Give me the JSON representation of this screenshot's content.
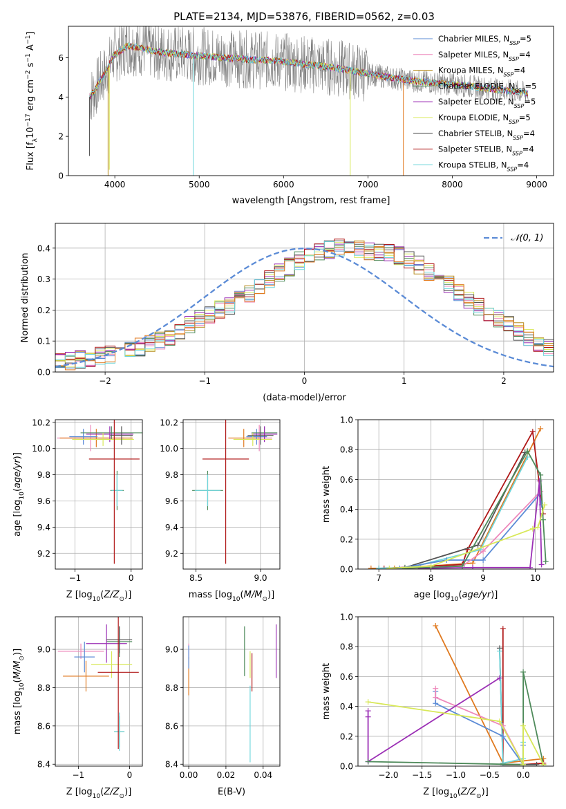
{
  "title": "PLATE=2134, MJD=53876, FIBERID=0562, z=0.03",
  "colors": {
    "Chabrier MILES": "#5b8bd6",
    "Salpeter MILES": "#ee88bb",
    "Kroupa MILES": "#b58a1a",
    "Chabrier ELODIE": "#4e8a5a",
    "Salpeter ELODIE": "#9b2fb5",
    "Kroupa ELODIE": "#d8e858",
    "Chabrier STELIB": "#555555",
    "Salpeter STELIB": "#b01818",
    "Kroupa STELIB": "#6fd6dc",
    "orange": "#e07a20",
    "normal": "#5b8bd6"
  },
  "chart_data": [
    {
      "type": "line",
      "id": "spectrum",
      "xlabel": "wavelength [Angstrom, rest frame]",
      "ylabel": "Flux [f_λ 10^-17 erg cm^-2 s^-1 A^-1]",
      "xlim": [
        3450,
        9200
      ],
      "ylim": [
        0,
        7.6
      ],
      "xticks": [
        4000,
        5000,
        6000,
        7000,
        8000,
        9000
      ],
      "yticks": [
        0,
        2,
        4,
        6
      ],
      "grid": false,
      "legend_position": "top-right",
      "data_range": [
        3700,
        8900
      ],
      "continuum_x": [
        3700,
        3760,
        3820,
        3900,
        3980,
        4050,
        4150,
        4300,
        4500,
        4700,
        5000,
        5300,
        5600,
        5900,
        6200,
        6500,
        6800,
        7100,
        7400,
        7700,
        8000,
        8300,
        8600,
        8900
      ],
      "continuum_y": [
        4.0,
        4.3,
        4.8,
        5.3,
        6.1,
        6.3,
        6.6,
        6.5,
        6.3,
        6.2,
        6.1,
        6.0,
        5.9,
        5.85,
        5.7,
        5.55,
        5.35,
        5.1,
        4.9,
        4.75,
        4.65,
        4.5,
        4.35,
        4.2
      ],
      "legend": [
        {
          "name": "Chabrier MILES, N",
          "sub": "SSP",
          "value": "=5",
          "color": "#5b8bd6"
        },
        {
          "name": "Salpeter MILES, N",
          "sub": "SSP",
          "value": "=4",
          "color": "#ee88bb"
        },
        {
          "name": "Kroupa MILES, N",
          "sub": "SSP",
          "value": "=4",
          "color": "#b58a1a"
        },
        {
          "name": "Chabrier ELODIE, N",
          "sub": "SSP",
          "value": "=5",
          "color": "#4e8a5a"
        },
        {
          "name": "Salpeter ELODIE, N",
          "sub": "SSP",
          "value": "=5",
          "color": "#9b2fb5"
        },
        {
          "name": "Kroupa ELODIE, N",
          "sub": "SSP",
          "value": "=5",
          "color": "#d8e858"
        },
        {
          "name": "Chabrier STELIB, N",
          "sub": "SSP",
          "value": "=4",
          "color": "#555555"
        },
        {
          "name": "Salpeter STELIB, N",
          "sub": "SSP",
          "value": "=4",
          "color": "#b01818"
        },
        {
          "name": "Kroupa STELIB, N",
          "sub": "SSP",
          "value": "=4",
          "color": "#6fd6dc"
        }
      ]
    },
    {
      "type": "line",
      "id": "residuals",
      "xlabel": "(data-model)/error",
      "ylabel": "Normed distribution",
      "xlim": [
        -2.5,
        2.5
      ],
      "ylim": [
        0,
        0.48
      ],
      "xticks": [
        -2,
        -1,
        0,
        1,
        2
      ],
      "yticks": [
        0.0,
        0.1,
        0.2,
        0.3,
        0.4
      ],
      "grid": true,
      "legend_position": "top-right",
      "legend_label": "𝒩(0, 1)",
      "bin_width": 0.1,
      "hist_base": [
        0.03,
        0.035,
        0.04,
        0.045,
        0.05,
        0.055,
        0.06,
        0.07,
        0.08,
        0.09,
        0.1,
        0.115,
        0.13,
        0.15,
        0.17,
        0.185,
        0.2,
        0.215,
        0.235,
        0.255,
        0.28,
        0.3,
        0.32,
        0.34,
        0.36,
        0.375,
        0.385,
        0.395,
        0.4,
        0.4,
        0.395,
        0.39,
        0.39,
        0.385,
        0.375,
        0.36,
        0.345,
        0.325,
        0.305,
        0.28,
        0.255,
        0.23,
        0.21,
        0.19,
        0.17,
        0.15,
        0.13,
        0.11,
        0.095,
        0.08
      ]
    },
    {
      "type": "scatter",
      "id": "age-vs-Z",
      "xlabel": "Z [log10(Z/Z_⊙)]",
      "ylabel": "age [log10(age/yr)]",
      "xlim": [
        -1.35,
        0.2
      ],
      "ylim": [
        9.08,
        10.22
      ],
      "xticks": [
        -1,
        0
      ],
      "yticks": [
        9.2,
        9.4,
        9.6,
        9.8,
        10.0,
        10.2
      ],
      "grid": true,
      "points": [
        {
          "x": -0.72,
          "y": 10.08,
          "xerr": 0.6,
          "yerr": 0.1,
          "color": "#ee88bb"
        },
        {
          "x": -0.62,
          "y": 10.08,
          "xerr": 0.65,
          "yerr": 0.07,
          "color": "#e07a20"
        },
        {
          "x": -0.85,
          "y": 10.09,
          "xerr": 0.25,
          "yerr": 0.06,
          "color": "#5b8bd6"
        },
        {
          "x": -0.35,
          "y": 10.12,
          "xerr": 0.55,
          "yerr": 0.05,
          "color": "#4e8a5a"
        },
        {
          "x": -0.38,
          "y": 10.11,
          "xerr": 0.42,
          "yerr": 0.06,
          "color": "#9b2fb5"
        },
        {
          "x": -0.5,
          "y": 10.07,
          "xerr": 0.55,
          "yerr": 0.05,
          "color": "#d8e858"
        },
        {
          "x": -0.17,
          "y": 10.1,
          "xerr": 0.2,
          "yerr": 0.07,
          "color": "#555555"
        },
        {
          "x": -0.25,
          "y": 9.68,
          "xerr": 0.12,
          "yerr": 0.15,
          "color": "#4e8a5a"
        },
        {
          "x": -0.25,
          "y": 9.68,
          "xerr": 0.1,
          "yerr": 0.12,
          "color": "#6fd6dc"
        },
        {
          "x": -0.3,
          "y": 9.92,
          "xerr": 0.45,
          "yerr": 0.8,
          "color": "#b01818"
        }
      ]
    },
    {
      "type": "scatter",
      "id": "age-vs-mass",
      "xlabel": "mass [log10(M/M_⊙)]",
      "ylabel": "",
      "xlim": [
        8.4,
        9.15
      ],
      "ylim": [
        9.08,
        10.22
      ],
      "xticks": [
        8.5,
        9.0
      ],
      "yticks": [
        9.2,
        9.4,
        9.6,
        9.8,
        10.0,
        10.2
      ],
      "grid": true,
      "points": [
        {
          "x": 8.99,
          "y": 10.08,
          "xerr": 0.1,
          "yerr": 0.1,
          "color": "#ee88bb"
        },
        {
          "x": 8.87,
          "y": 10.08,
          "xerr": 0.12,
          "yerr": 0.07,
          "color": "#e07a20"
        },
        {
          "x": 8.97,
          "y": 10.09,
          "xerr": 0.08,
          "yerr": 0.06,
          "color": "#5b8bd6"
        },
        {
          "x": 9.03,
          "y": 10.12,
          "xerr": 0.1,
          "yerr": 0.05,
          "color": "#4e8a5a"
        },
        {
          "x": 9.03,
          "y": 10.11,
          "xerr": 0.1,
          "yerr": 0.06,
          "color": "#9b2fb5"
        },
        {
          "x": 8.94,
          "y": 10.07,
          "xerr": 0.15,
          "yerr": 0.05,
          "color": "#d8e858"
        },
        {
          "x": 9.0,
          "y": 10.1,
          "xerr": 0.1,
          "yerr": 0.07,
          "color": "#555555"
        },
        {
          "x": 8.59,
          "y": 9.68,
          "xerr": 0.12,
          "yerr": 0.15,
          "color": "#4e8a5a"
        },
        {
          "x": 8.59,
          "y": 9.68,
          "xerr": 0.1,
          "yerr": 0.12,
          "color": "#6fd6dc"
        },
        {
          "x": 8.73,
          "y": 9.92,
          "xerr": 0.18,
          "yerr": 0.8,
          "color": "#b01818"
        }
      ]
    },
    {
      "type": "line",
      "id": "massweight-vs-age",
      "xlabel": "age [log10(age/yr)]",
      "ylabel": "mass weight",
      "xlim": [
        6.6,
        10.35
      ],
      "ylim": [
        0,
        1.0
      ],
      "xticks": [
        7,
        8,
        9,
        10
      ],
      "yticks": [
        0.0,
        0.2,
        0.4,
        0.6,
        0.8,
        1.0
      ],
      "grid": true,
      "series": [
        {
          "color": "#e07a20",
          "x": [
            6.85,
            7.3,
            8.8,
            10.1
          ],
          "y": [
            0.005,
            0.005,
            0.04,
            0.94
          ]
        },
        {
          "color": "#b01818",
          "x": [
            7.1,
            8.6,
            8.7,
            9.95,
            10.15
          ],
          "y": [
            0.005,
            0.03,
            0.13,
            0.92,
            0.37
          ]
        },
        {
          "color": "#555555",
          "x": [
            7.0,
            7.5,
            8.9,
            9.8
          ],
          "y": [
            0.005,
            0.01,
            0.16,
            0.78
          ]
        },
        {
          "color": "#6fd6dc",
          "x": [
            7.0,
            7.6,
            8.95,
            9.85
          ],
          "y": [
            0.005,
            0.01,
            0.13,
            0.75
          ]
        },
        {
          "color": "#5b8bd6",
          "x": [
            7.4,
            8.3,
            9.0,
            10.08,
            10.12
          ],
          "y": [
            0.005,
            0.06,
            0.06,
            0.5,
            0.43
          ]
        },
        {
          "color": "#ee88bb",
          "x": [
            7.6,
            8.6,
            9.0,
            10.1
          ],
          "y": [
            0.005,
            0.02,
            0.12,
            0.52
          ]
        },
        {
          "color": "#9b2fb5",
          "x": [
            7.8,
            8.8,
            9.9,
            10.08,
            10.12
          ],
          "y": [
            0.005,
            0.01,
            0.01,
            0.59,
            0.03
          ]
        },
        {
          "color": "#4e8a5a",
          "x": [
            7.5,
            8.6,
            9.85,
            10.1,
            10.15,
            10.2
          ],
          "y": [
            0.005,
            0.02,
            0.79,
            0.63,
            0.33,
            0.05
          ]
        },
        {
          "color": "#d8e858",
          "x": [
            7.2,
            8.0,
            9.95,
            10.05,
            10.18
          ],
          "y": [
            0.005,
            0.02,
            0.27,
            0.28,
            0.43
          ]
        }
      ]
    },
    {
      "type": "scatter",
      "id": "mass-vs-Z",
      "xlabel": "Z [log10(Z/Z_⊙)]",
      "ylabel": "mass [log10(M/M_⊙)]",
      "xlim": [
        -1.45,
        0.25
      ],
      "ylim": [
        8.39,
        9.17
      ],
      "xticks": [
        -1,
        0
      ],
      "yticks": [
        8.4,
        8.6,
        8.8,
        9.0
      ],
      "grid": true,
      "points": [
        {
          "x": -0.95,
          "y": 8.99,
          "xerr": 0.45,
          "yerr": 0.04,
          "color": "#ee88bb"
        },
        {
          "x": -0.85,
          "y": 8.86,
          "xerr": 0.45,
          "yerr": 0.08,
          "color": "#e07a20"
        },
        {
          "x": -0.88,
          "y": 8.96,
          "xerr": 0.2,
          "yerr": 0.08,
          "color": "#5b8bd6"
        },
        {
          "x": -0.2,
          "y": 9.04,
          "xerr": 0.25,
          "yerr": 0.08,
          "color": "#4e8a5a"
        },
        {
          "x": -0.45,
          "y": 9.03,
          "xerr": 0.4,
          "yerr": 0.1,
          "color": "#9b2fb5"
        },
        {
          "x": -0.35,
          "y": 8.92,
          "xerr": 0.4,
          "yerr": 0.07,
          "color": "#d8e858"
        },
        {
          "x": -0.2,
          "y": 9.05,
          "xerr": 0.25,
          "yerr": 0.07,
          "color": "#555555"
        },
        {
          "x": -0.2,
          "y": 8.57,
          "xerr": 0.1,
          "yerr": 0.08,
          "color": "#4e8a5a"
        },
        {
          "x": -0.2,
          "y": 8.57,
          "xerr": 0.1,
          "yerr": 0.1,
          "color": "#6fd6dc"
        },
        {
          "x": -0.22,
          "y": 8.88,
          "xerr": 0.4,
          "yerr": 0.4,
          "color": "#b01818"
        }
      ]
    },
    {
      "type": "scatter",
      "id": "mass-vs-EBV",
      "xlabel": "E(B-V)",
      "ylabel": "",
      "xlim": [
        -0.003,
        0.049
      ],
      "ylim": [
        8.39,
        9.17
      ],
      "xticks": [
        0.0,
        0.02,
        0.04
      ],
      "yticks": [
        8.4,
        8.6,
        8.8,
        9.0
      ],
      "grid": true,
      "points": [
        {
          "x": 0.0,
          "y": 8.99,
          "xerr": 0,
          "yerr": 0.04,
          "color": "#ee88bb"
        },
        {
          "x": 0.0,
          "y": 8.86,
          "xerr": 0,
          "yerr": 0.1,
          "color": "#e07a20"
        },
        {
          "x": 0.0,
          "y": 8.96,
          "xerr": 0,
          "yerr": 0.06,
          "color": "#5b8bd6"
        },
        {
          "x": 0.03,
          "y": 8.99,
          "xerr": 0,
          "yerr": 0.13,
          "color": "#4e8a5a"
        },
        {
          "x": 0.047,
          "y": 8.99,
          "xerr": 0,
          "yerr": 0.14,
          "color": "#9b2fb5"
        },
        {
          "x": 0.033,
          "y": 8.92,
          "xerr": 0,
          "yerr": 0.07,
          "color": "#d8e858"
        },
        {
          "x": 0.033,
          "y": 8.61,
          "xerr": 0,
          "yerr": 0.2,
          "color": "#6fd6dc"
        },
        {
          "x": 0.034,
          "y": 8.88,
          "xerr": 0,
          "yerr": 0.1,
          "color": "#b01818"
        }
      ]
    },
    {
      "type": "line",
      "id": "massweight-vs-Z",
      "xlabel": "Z [log10(Z/Z_⊙)]",
      "ylabel": "mass weight",
      "xlim": [
        -2.45,
        0.45
      ],
      "ylim": [
        0,
        1.0
      ],
      "xticks": [
        -2.0,
        -1.5,
        -1.0,
        -0.5,
        0.0
      ],
      "yticks": [
        0.0,
        0.2,
        0.4,
        0.6,
        0.8,
        1.0
      ],
      "grid": true,
      "series": [
        {
          "color": "#e07a20",
          "x": [
            -1.3,
            -0.3,
            0.3,
            0.3
          ],
          "y": [
            0.94,
            0.02,
            0.05,
            0.01
          ]
        },
        {
          "color": "#b01818",
          "x": [
            -0.3,
            -0.3,
            0.0,
            0.3
          ],
          "y": [
            0.92,
            0.01,
            0.01,
            0.02
          ]
        },
        {
          "color": "#555555",
          "x": [
            -0.35,
            -0.3,
            0.0,
            0.2
          ],
          "y": [
            0.79,
            0.01,
            0.01,
            0.01
          ]
        },
        {
          "color": "#6fd6dc",
          "x": [
            -0.35,
            -0.3,
            0.0,
            0.0
          ],
          "y": [
            0.77,
            0.02,
            0.05,
            0.16
          ]
        },
        {
          "color": "#5b8bd6",
          "x": [
            -1.3,
            -1.3,
            -0.3,
            0.0,
            0.0
          ],
          "y": [
            0.5,
            0.42,
            0.2,
            0.01,
            0.14
          ]
        },
        {
          "color": "#ee88bb",
          "x": [
            -1.3,
            -1.3,
            -0.3,
            0.0
          ],
          "y": [
            0.52,
            0.46,
            0.27,
            0.01
          ]
        },
        {
          "color": "#9b2fb5",
          "x": [
            -2.3,
            -2.3,
            -0.35,
            -2.3,
            -2.3
          ],
          "y": [
            0.37,
            0.03,
            0.59,
            0.03,
            0.33
          ]
        },
        {
          "color": "#4e8a5a",
          "x": [
            -2.3,
            0.0,
            0.0,
            0.3
          ],
          "y": [
            0.03,
            0.01,
            0.63,
            0.01
          ]
        },
        {
          "color": "#d8e858",
          "x": [
            -2.3,
            -0.35,
            0.0,
            0.0,
            0.3
          ],
          "y": [
            0.43,
            0.3,
            0.01,
            0.27,
            0.01
          ]
        }
      ]
    }
  ]
}
